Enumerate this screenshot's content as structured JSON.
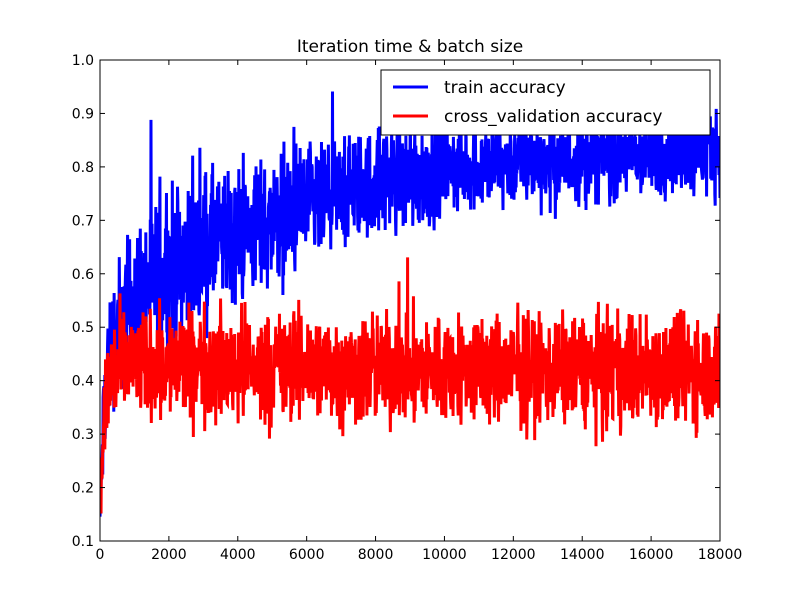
{
  "chart_data": {
    "type": "line",
    "title": "Iteration time & batch size",
    "xlabel": "",
    "ylabel": "",
    "xlim": [
      0,
      18000
    ],
    "ylim": [
      0.1,
      1.0
    ],
    "xticks": [
      0,
      2000,
      4000,
      6000,
      8000,
      10000,
      12000,
      14000,
      16000,
      18000
    ],
    "yticks": [
      0.1,
      0.2,
      0.3,
      0.4,
      0.5,
      0.6,
      0.7,
      0.8,
      0.9,
      1.0
    ],
    "xtick_labels": [
      "0",
      "2000",
      "4000",
      "6000",
      "8000",
      "10000",
      "12000",
      "14000",
      "16000",
      "18000"
    ],
    "ytick_labels": [
      "0.1",
      "0.2",
      "0.3",
      "0.4",
      "0.5",
      "0.6",
      "0.7",
      "0.8",
      "0.9",
      "1.0"
    ],
    "grid": false,
    "legend": "top-right",
    "series": [
      {
        "name": "train accuracy",
        "color": "#0000ff",
        "x": [
          0,
          100,
          200,
          300,
          400,
          500,
          750,
          1000,
          1500,
          2000,
          2500,
          3000,
          3500,
          4000,
          4500,
          5000,
          5500,
          6000,
          6500,
          7000,
          7500,
          8000,
          8500,
          9000,
          9500,
          10000,
          10500,
          11000,
          11500,
          12000,
          12500,
          13000,
          13500,
          14000,
          14500,
          15000,
          15500,
          16000,
          16500,
          17000,
          17500,
          18000
        ],
        "values": [
          0.14,
          0.32,
          0.42,
          0.45,
          0.48,
          0.5,
          0.53,
          0.55,
          0.58,
          0.61,
          0.63,
          0.65,
          0.66,
          0.67,
          0.69,
          0.7,
          0.71,
          0.72,
          0.73,
          0.75,
          0.76,
          0.77,
          0.78,
          0.78,
          0.79,
          0.8,
          0.8,
          0.8,
          0.8,
          0.81,
          0.81,
          0.81,
          0.81,
          0.82,
          0.82,
          0.82,
          0.82,
          0.82,
          0.83,
          0.83,
          0.83,
          0.84
        ],
        "noise": [
          0.03,
          0.05,
          0.06,
          0.06,
          0.06,
          0.06,
          0.07,
          0.07,
          0.07,
          0.07,
          0.07,
          0.07,
          0.06,
          0.06,
          0.06,
          0.06,
          0.06,
          0.06,
          0.05,
          0.05,
          0.05,
          0.05,
          0.05,
          0.05,
          0.05,
          0.04,
          0.04,
          0.04,
          0.04,
          0.04,
          0.04,
          0.04,
          0.04,
          0.04,
          0.04,
          0.04,
          0.04,
          0.04,
          0.04,
          0.04,
          0.04,
          0.04
        ]
      },
      {
        "name": "cross_validation accuracy",
        "color": "#ff0000",
        "x": [
          0,
          100,
          200,
          300,
          500,
          1000,
          2000,
          3000,
          4000,
          5000,
          6000,
          7000,
          8000,
          9000,
          10000,
          11000,
          12000,
          13000,
          14000,
          15000,
          16000,
          17000,
          18000
        ],
        "values": [
          0.17,
          0.3,
          0.38,
          0.4,
          0.42,
          0.43,
          0.43,
          0.43,
          0.43,
          0.42,
          0.43,
          0.42,
          0.42,
          0.42,
          0.42,
          0.42,
          0.42,
          0.42,
          0.42,
          0.42,
          0.42,
          0.42,
          0.42
        ],
        "noise": [
          0.02,
          0.05,
          0.06,
          0.06,
          0.05,
          0.05,
          0.05,
          0.05,
          0.05,
          0.05,
          0.05,
          0.05,
          0.05,
          0.05,
          0.05,
          0.05,
          0.05,
          0.05,
          0.05,
          0.05,
          0.05,
          0.05,
          0.05
        ]
      }
    ]
  }
}
